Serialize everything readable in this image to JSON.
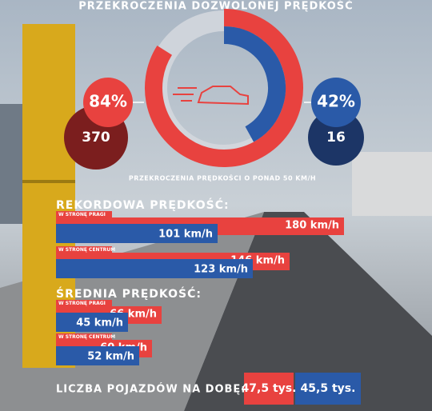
{
  "title": "PRZEKROCZENIA DOZWOLONEJ PRĘDKOŚĆ",
  "chart_data": [
    {
      "type": "donut",
      "subtitle": "PRZEKROCZENIA PRĘDKOŚCI O PONAD 50 KM/H",
      "series": [
        {
          "color": "#e8423f",
          "values": [
            84
          ],
          "value_labels": [
            "84%"
          ],
          "counts": [
            370
          ]
        },
        {
          "color": "#2a5aa8",
          "values": [
            42
          ],
          "value_labels": [
            "42%"
          ],
          "counts": [
            16
          ]
        }
      ]
    },
    {
      "type": "hbar",
      "title": "REKORDOWA PRĘDKOŚĆ:",
      "categories": [
        "W STRONĘ PRAGI",
        "W STRONĘ CENTRUM"
      ],
      "series": [
        {
          "color": "#e8423f",
          "values": [
            180,
            146
          ],
          "value_labels": [
            "180 km/h",
            "146 km/h"
          ]
        },
        {
          "color": "#2a5aa8",
          "values": [
            101,
            123
          ],
          "value_labels": [
            "101 km/h",
            "123 km/h"
          ]
        }
      ]
    },
    {
      "type": "hbar",
      "title": "ŚREDNIA PRĘDKOŚĆ:",
      "categories": [
        "W STRONĘ PRAGI",
        "W STRONĘ CENTRUM"
      ],
      "series": [
        {
          "color": "#e8423f",
          "values": [
            66,
            60
          ],
          "value_labels": [
            "66 km/h",
            "60 km/h"
          ]
        },
        {
          "color": "#2a5aa8",
          "values": [
            45,
            52
          ],
          "value_labels": [
            "45 km/h",
            "52 km/h"
          ]
        }
      ]
    },
    {
      "type": "tiles",
      "title": "LICZBA POJAZDÓW NA DOBĘ:",
      "series": [
        {
          "color": "#e8423f",
          "values": [
            47.5
          ],
          "value_labels": [
            "47,5 tys."
          ]
        },
        {
          "color": "#2a5aa8",
          "values": [
            45.5
          ],
          "value_labels": [
            "45,5 tys."
          ]
        }
      ]
    }
  ]
}
